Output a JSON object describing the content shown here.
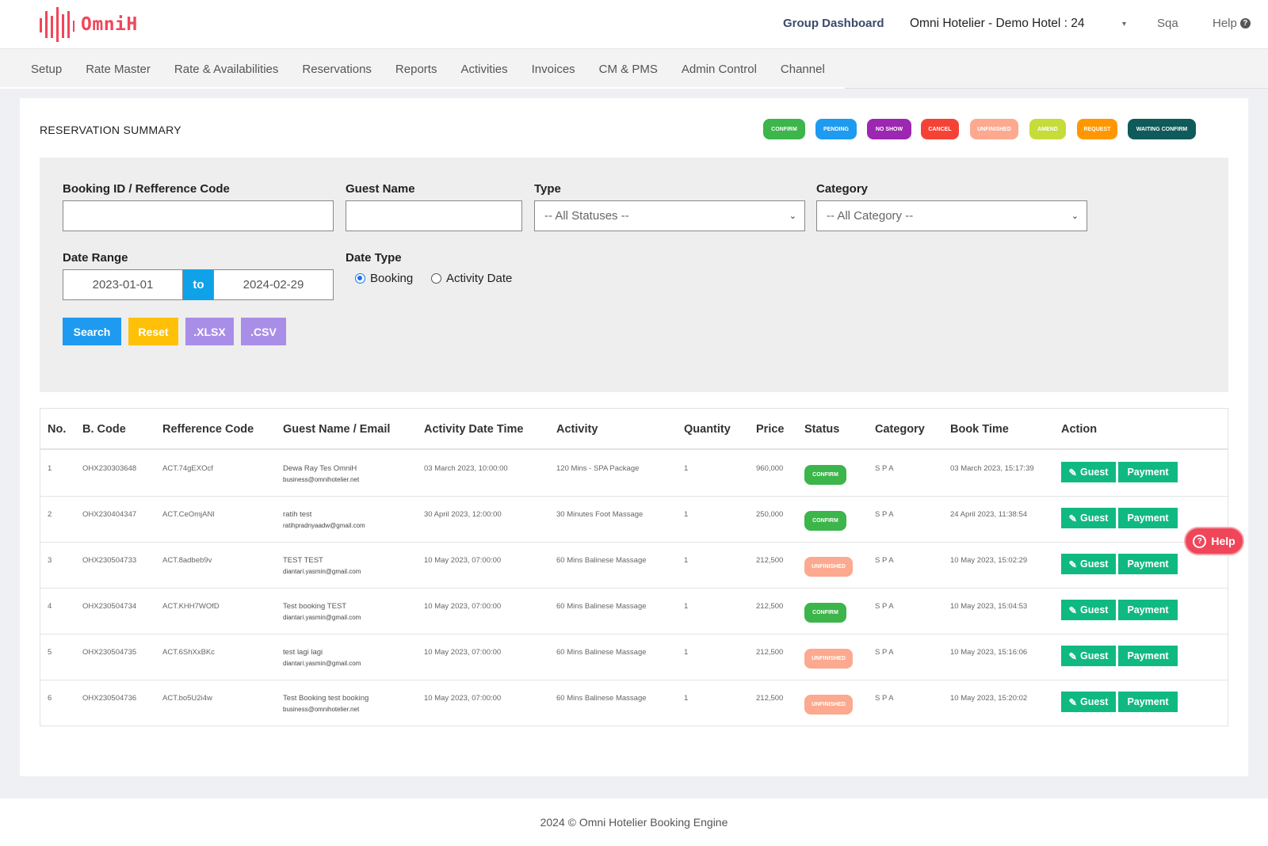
{
  "header": {
    "logo_text": "OmniH",
    "group_dashboard": "Group Dashboard",
    "hotel": "Omni Hotelier - Demo Hotel : 24",
    "caret": "▾",
    "user": "Sqa",
    "help": "Help",
    "help_icon": "?"
  },
  "nav": [
    "Setup",
    "Rate Master",
    "Rate & Availabilities",
    "Reservations",
    "Reports",
    "Activities",
    "Invoices",
    "CM & PMS",
    "Admin Control",
    "Channel"
  ],
  "summary": {
    "title": "RESERVATION SUMMARY",
    "legend": [
      {
        "label": "CONFIRM",
        "color": "#3cb54a"
      },
      {
        "label": "PENDING",
        "color": "#1e9af0"
      },
      {
        "label": "NO SHOW",
        "color": "#9c27b0"
      },
      {
        "label": "CANCEL",
        "color": "#f44336"
      },
      {
        "label": "UNFINISHED",
        "color": "#fca98f"
      },
      {
        "label": "AMEND",
        "color": "#c6dc3a"
      },
      {
        "label": "REQUEST",
        "color": "#ff9800"
      },
      {
        "label": "WAITING CONFIRM",
        "color": "#0f5a5a"
      }
    ]
  },
  "filter": {
    "booking_id_label": "Booking ID / Refference Code",
    "booking_id_value": "",
    "guest_name_label": "Guest Name",
    "guest_name_value": "",
    "type_label": "Type",
    "type_value": "-- All Statuses --",
    "category_label": "Category",
    "category_value": "-- All Category --",
    "date_range_label": "Date Range",
    "date_from": "2023-01-01",
    "date_to_label": "to",
    "date_to": "2024-02-29",
    "date_type_label": "Date Type",
    "date_type_options": [
      "Booking",
      "Activity Date"
    ],
    "date_type_selected": "Booking",
    "buttons": {
      "search": "Search",
      "reset": "Reset",
      "xlsx": ".XLSX",
      "csv": ".CSV"
    }
  },
  "table": {
    "columns": [
      "No.",
      "B. Code",
      "Refference Code",
      "Guest Name / Email",
      "Activity Date Time",
      "Activity",
      "Quantity",
      "Price",
      "Status",
      "Category",
      "Book Time",
      "Action"
    ],
    "action_guest": "Guest",
    "action_payment": "Payment",
    "rows": [
      {
        "no": "1",
        "bcode": "OHX230303648",
        "ref": "ACT.74gEXOcf",
        "name": "Dewa Ray Tes OmniH",
        "email": "business@omnihotelier.net",
        "adt": "03 March 2023, 10:00:00",
        "activity": "120 Mins - SPA Package",
        "qty": "1",
        "price": "960,000",
        "status": "CONFIRM",
        "status_color": "#3cb54a",
        "category": "S P A",
        "book_time": "03 March 2023, 15:17:39"
      },
      {
        "no": "2",
        "bcode": "OHX230404347",
        "ref": "ACT.CeOmjANl",
        "name": "ratih test",
        "email": "ratihpradnyaadw@gmail.com",
        "adt": "30 April 2023, 12:00:00",
        "activity": "30 Minutes Foot Massage",
        "qty": "1",
        "price": "250,000",
        "status": "CONFIRM",
        "status_color": "#3cb54a",
        "category": "S P A",
        "book_time": "24 April 2023, 11:38:54"
      },
      {
        "no": "3",
        "bcode": "OHX230504733",
        "ref": "ACT.8adbeb9v",
        "name": "TEST TEST",
        "email": "diantari.yasmin@gmail.com",
        "adt": "10 May 2023, 07:00:00",
        "activity": "60 Mins Balinese Massage",
        "qty": "1",
        "price": "212,500",
        "status": "UNFINISHED",
        "status_color": "#fca98f",
        "category": "S P A",
        "book_time": "10 May 2023, 15:02:29"
      },
      {
        "no": "4",
        "bcode": "OHX230504734",
        "ref": "ACT.KHH7WOfD",
        "name": "Test booking TEST",
        "email": "diantari.yasmin@gmail.com",
        "adt": "10 May 2023, 07:00:00",
        "activity": "60 Mins Balinese Massage",
        "qty": "1",
        "price": "212,500",
        "status": "CONFIRM",
        "status_color": "#3cb54a",
        "category": "S P A",
        "book_time": "10 May 2023, 15:04:53"
      },
      {
        "no": "5",
        "bcode": "OHX230504735",
        "ref": "ACT.6ShXxBKc",
        "name": "test lagi lagi",
        "email": "diantari.yasmin@gmail.com",
        "adt": "10 May 2023, 07:00:00",
        "activity": "60 Mins Balinese Massage",
        "qty": "1",
        "price": "212,500",
        "status": "UNFINISHED",
        "status_color": "#fca98f",
        "category": "S P A",
        "book_time": "10 May 2023, 15:16:06"
      },
      {
        "no": "6",
        "bcode": "OHX230504736",
        "ref": "ACT.bo5U2i4w",
        "name": "Test Booking test booking",
        "email": "business@omnihotelier.net",
        "adt": "10 May 2023, 07:00:00",
        "activity": "60 Mins Balinese Massage",
        "qty": "1",
        "price": "212,500",
        "status": "UNFINISHED",
        "status_color": "#fca98f",
        "category": "S P A",
        "book_time": "10 May 2023, 15:20:02"
      }
    ]
  },
  "float_help": {
    "label": "Help",
    "icon": "?"
  },
  "footer": "2024 © Omni Hotelier Booking Engine",
  "colors": {
    "brand": "#f0465a",
    "search": "#1e9af0",
    "reset": "#ffc107",
    "export": "#a98ee8",
    "action": "#10b981",
    "to": "#0fa2e9"
  }
}
